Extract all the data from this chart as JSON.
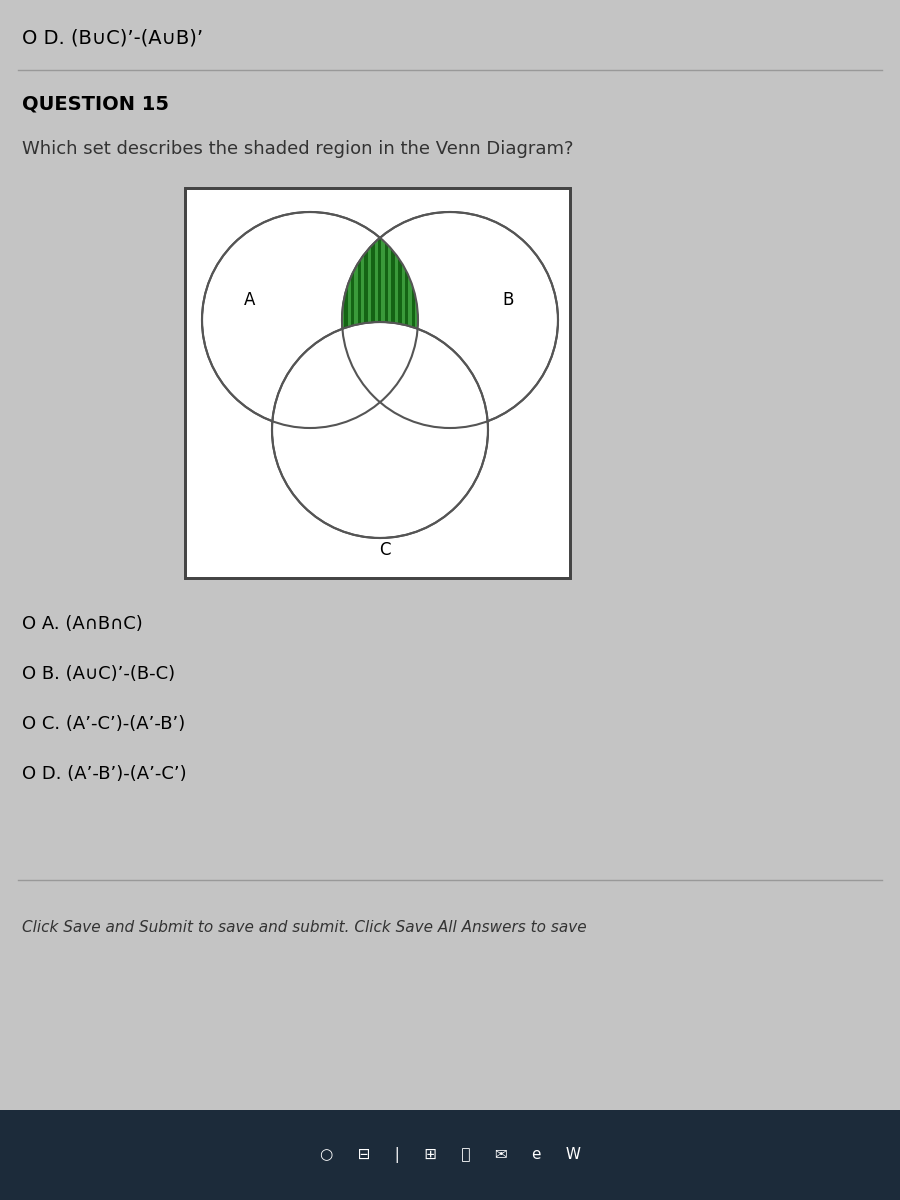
{
  "bg_color": "#c4c4c4",
  "top_text": "O D. (B∪C)’-(A∪B)’",
  "question_label": "QUESTION 15",
  "question_text": "Which set describes the shaded region in the Venn Diagram?",
  "venn_box_facecolor": "#ffffff",
  "venn_border_color": "#444444",
  "circle_edge_color": "#555555",
  "shaded_color_fill": "#3a9a3a",
  "shaded_color_hatch": "#1a6a1a",
  "label_A": "A",
  "label_B": "B",
  "label_C": "C",
  "options": [
    "O A. (A∩B∩C)",
    "O B. (A∪C)’-(B-C)",
    "O C. (A’-C’)-(A’-B’)",
    "O D. (A’-B’)-(A’-C’)"
  ],
  "footer_text": "Click Save and Submit to save and submit. Click Save All Answers to save",
  "taskbar_color": "#1c2b3a"
}
